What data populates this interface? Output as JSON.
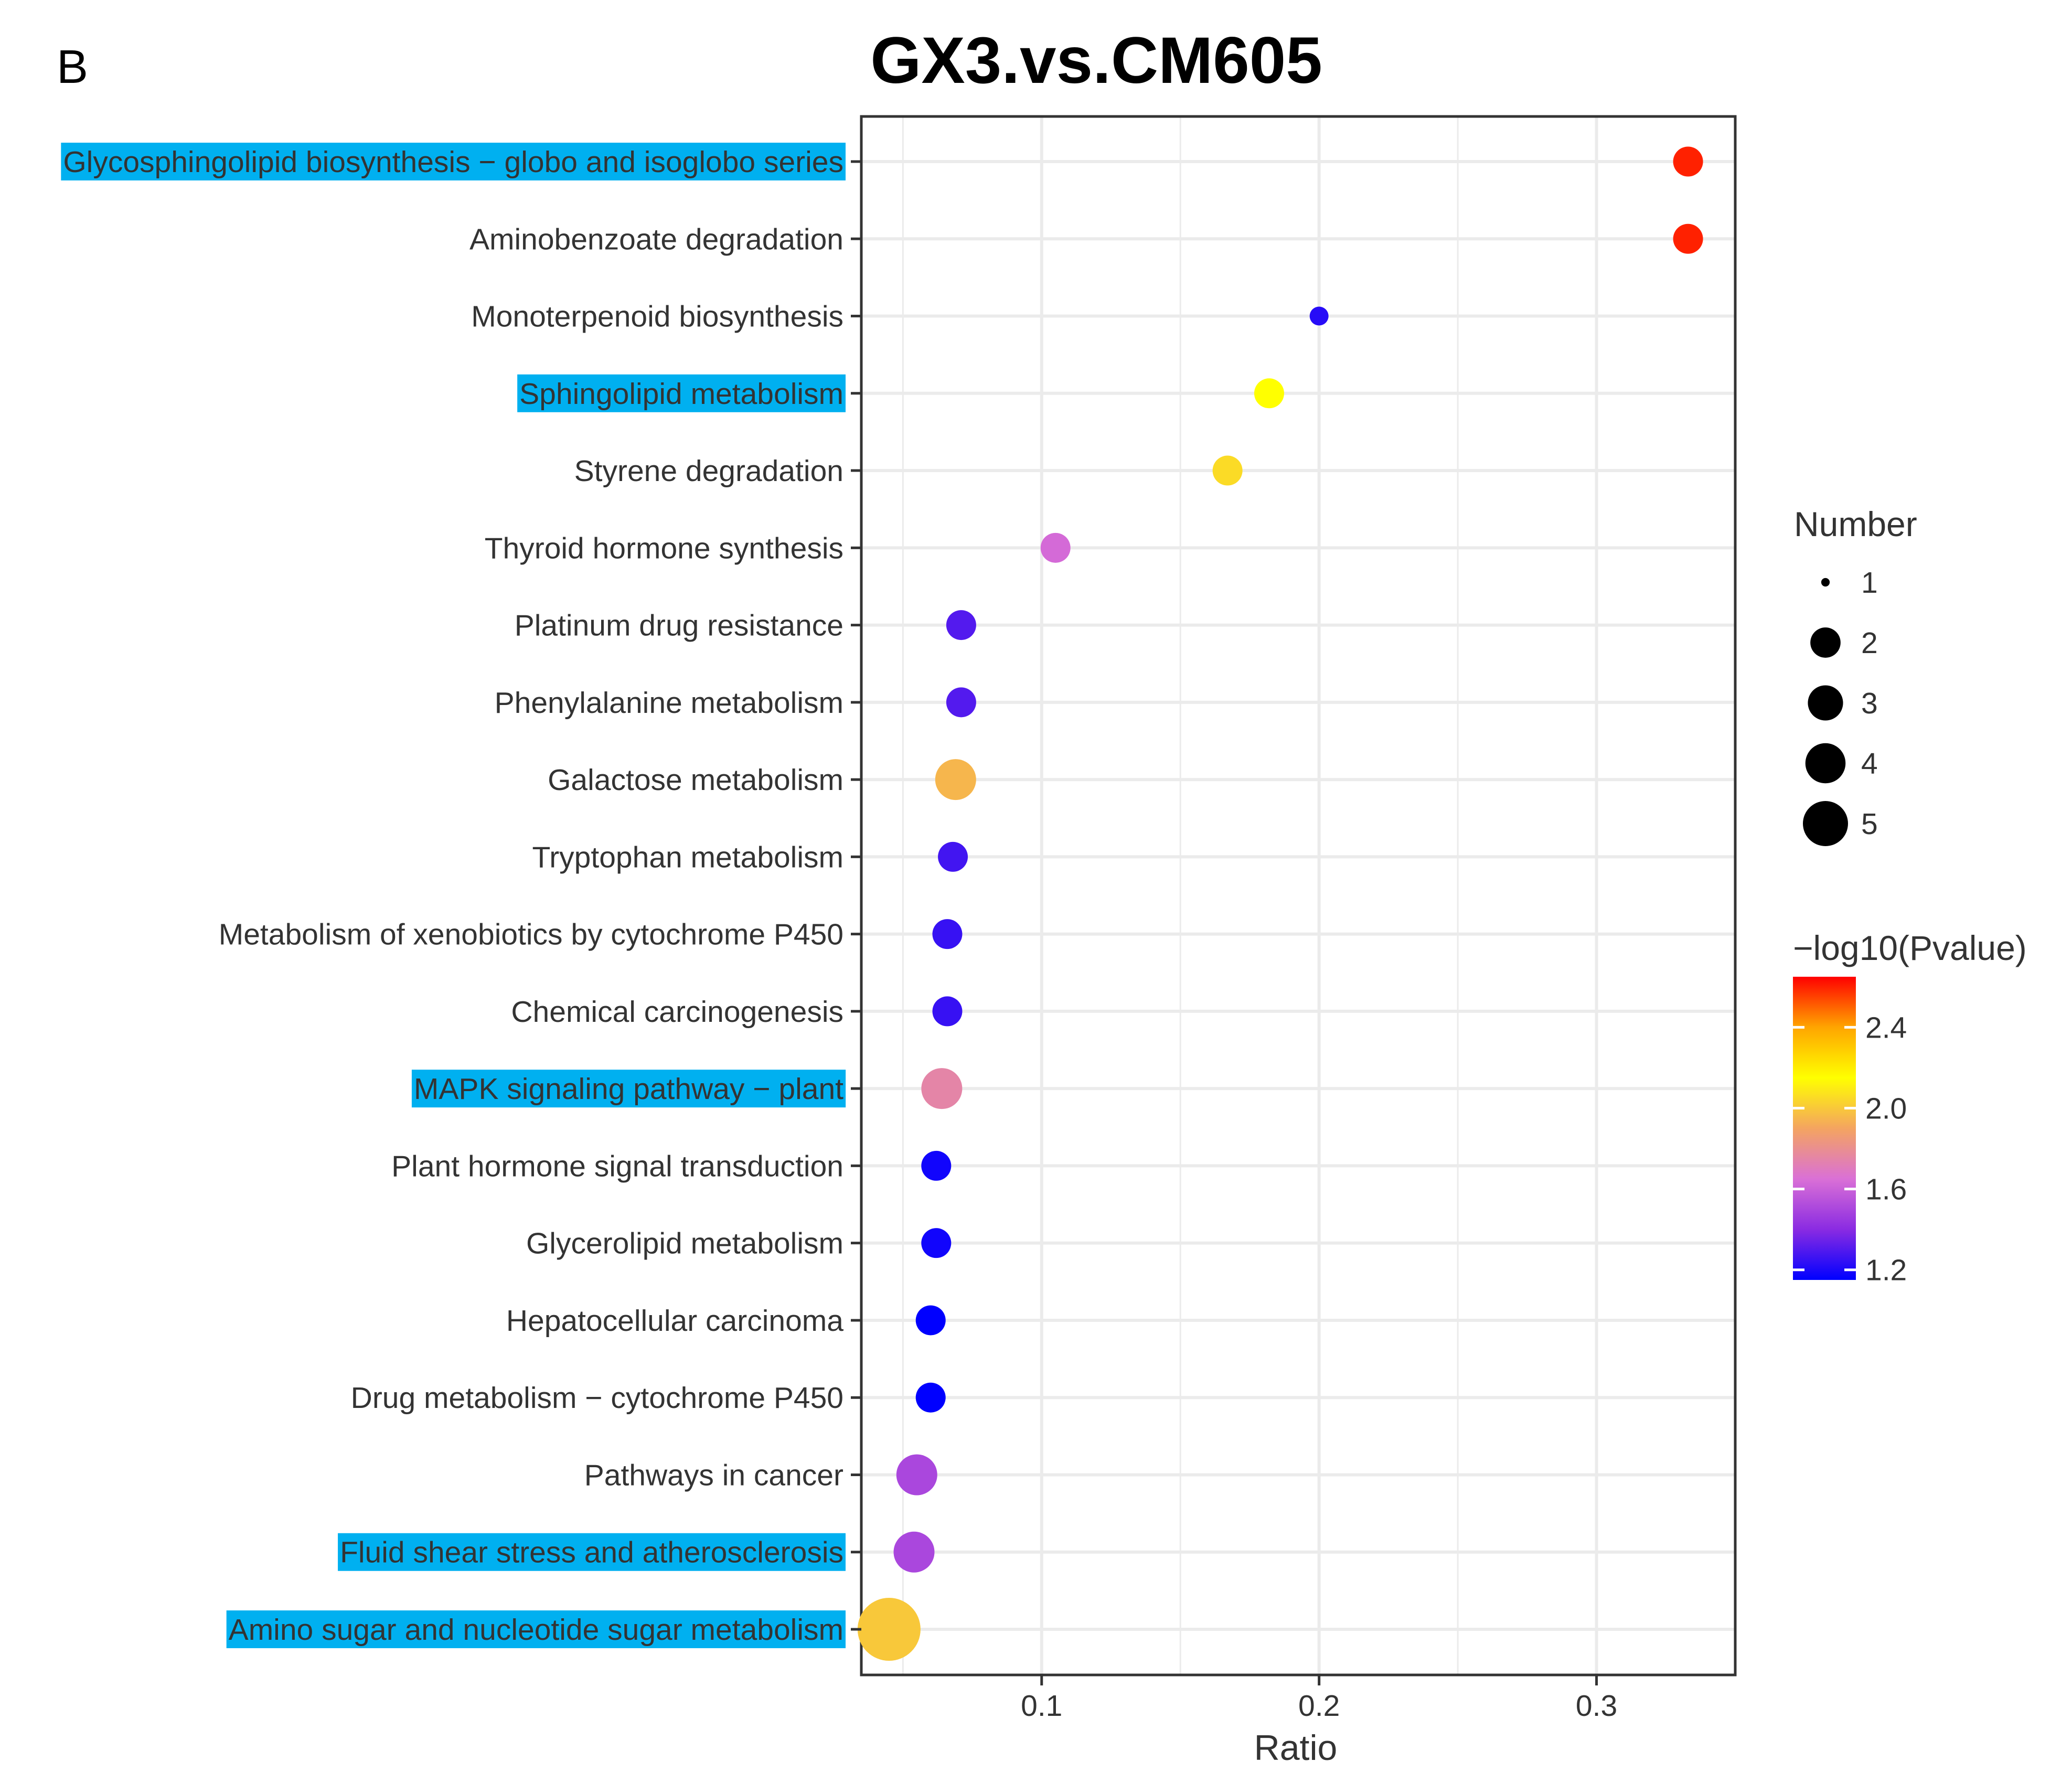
{
  "panel_letter": "B",
  "chart_data": {
    "type": "scatter",
    "title": "GX3.vs.CM605",
    "xlabel": "Ratio",
    "ylabel": "",
    "xlim": [
      0.035,
      0.35
    ],
    "x_ticks": [
      0.1,
      0.2,
      0.3
    ],
    "x_tick_labels": [
      "0.1",
      "0.2",
      "0.3"
    ],
    "grid": true,
    "points": [
      {
        "pathway": "Glycosphingolipid biosynthesis − globo and isoglobo series",
        "ratio": 0.333,
        "number": 2,
        "neg_log10_p": 2.6,
        "highlighted": true
      },
      {
        "pathway": "Aminobenzoate degradation",
        "ratio": 0.333,
        "number": 2,
        "neg_log10_p": 2.6,
        "highlighted": false
      },
      {
        "pathway": "Monoterpenoid biosynthesis",
        "ratio": 0.2,
        "number": 1,
        "neg_log10_p": 1.22,
        "highlighted": false
      },
      {
        "pathway": "Sphingolipid metabolism",
        "ratio": 0.182,
        "number": 2,
        "neg_log10_p": 2.15,
        "highlighted": true
      },
      {
        "pathway": "Styrene degradation",
        "ratio": 0.167,
        "number": 2,
        "neg_log10_p": 2.05,
        "highlighted": false
      },
      {
        "pathway": "Thyroid hormone synthesis",
        "ratio": 0.105,
        "number": 2,
        "neg_log10_p": 1.63,
        "highlighted": false
      },
      {
        "pathway": "Platinum drug resistance",
        "ratio": 0.071,
        "number": 2,
        "neg_log10_p": 1.3,
        "highlighted": false
      },
      {
        "pathway": "Phenylalanine metabolism",
        "ratio": 0.071,
        "number": 2,
        "neg_log10_p": 1.3,
        "highlighted": false
      },
      {
        "pathway": "Galactose metabolism",
        "ratio": 0.069,
        "number": 3,
        "neg_log10_p": 1.95,
        "highlighted": false
      },
      {
        "pathway": "Tryptophan metabolism",
        "ratio": 0.068,
        "number": 2,
        "neg_log10_p": 1.27,
        "highlighted": false
      },
      {
        "pathway": "Metabolism of xenobiotics by cytochrome P450",
        "ratio": 0.066,
        "number": 2,
        "neg_log10_p": 1.25,
        "highlighted": false
      },
      {
        "pathway": "Chemical carcinogenesis",
        "ratio": 0.066,
        "number": 2,
        "neg_log10_p": 1.25,
        "highlighted": false
      },
      {
        "pathway": "MAPK signaling pathway − plant",
        "ratio": 0.064,
        "number": 3,
        "neg_log10_p": 1.75,
        "highlighted": true
      },
      {
        "pathway": "Plant hormone signal transduction",
        "ratio": 0.062,
        "number": 2,
        "neg_log10_p": 1.18,
        "highlighted": false
      },
      {
        "pathway": "Glycerolipid metabolism",
        "ratio": 0.062,
        "number": 2,
        "neg_log10_p": 1.18,
        "highlighted": false
      },
      {
        "pathway": "Hepatocellular carcinoma",
        "ratio": 0.06,
        "number": 2,
        "neg_log10_p": 1.15,
        "highlighted": false
      },
      {
        "pathway": "Drug metabolism − cytochrome P450",
        "ratio": 0.06,
        "number": 2,
        "neg_log10_p": 1.15,
        "highlighted": false
      },
      {
        "pathway": "Pathways in cancer",
        "ratio": 0.055,
        "number": 3,
        "neg_log10_p": 1.5,
        "highlighted": false
      },
      {
        "pathway": "Fluid shear stress and atherosclerosis",
        "ratio": 0.054,
        "number": 3,
        "neg_log10_p": 1.5,
        "highlighted": true
      },
      {
        "pathway": "Amino sugar and nucleotide sugar metabolism",
        "ratio": 0.045,
        "number": 5,
        "neg_log10_p": 2.0,
        "highlighted": true
      }
    ],
    "legend_size": {
      "title": "Number",
      "values": [
        1,
        2,
        3,
        4,
        5
      ],
      "labels": [
        "1",
        "2",
        "3",
        "4",
        "5"
      ],
      "placement": "right"
    },
    "legend_color": {
      "title": "−log10(Pvalue)",
      "range": [
        1.15,
        2.65
      ],
      "ticks": [
        1.2,
        1.6,
        2.0,
        2.4
      ],
      "tick_labels": [
        "1.2",
        "1.6",
        "2.0",
        "2.4"
      ],
      "colormap": [
        "#0000FF",
        "#8A2BE2",
        "#DA70D6",
        "#F4A460",
        "#FFFF00",
        "#FFA500",
        "#FF0000"
      ],
      "placement": "right"
    },
    "highlight_color": "#00B0F0"
  }
}
